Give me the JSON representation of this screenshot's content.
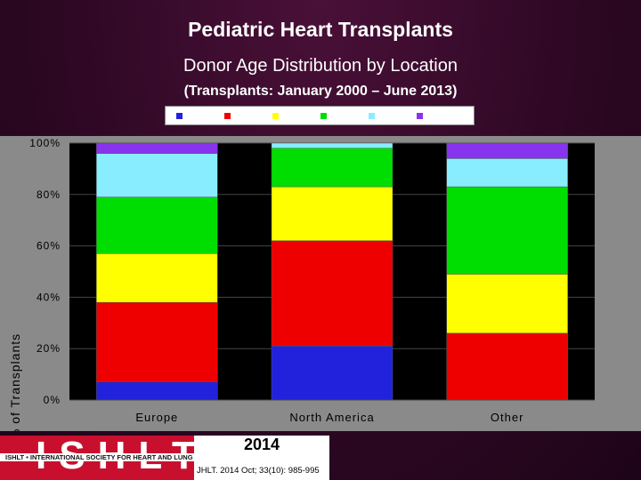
{
  "title": "Pediatric Heart Transplants",
  "subtitle": "Donor Age Distribution by Location",
  "subtitle2": "(Transplants: January 2000 – June 2013)",
  "colors": {
    "series": [
      "#2222dd",
      "#ee0000",
      "#ffff00",
      "#00dd00",
      "#88eeff",
      "#8833ee"
    ],
    "plot_bg": "#000000",
    "panel_bg": "#8a8a8a"
  },
  "chart_data": {
    "type": "bar",
    "stacked": true,
    "categories": [
      "Europe",
      "North America",
      "Other"
    ],
    "series": [
      {
        "values": [
          7,
          21,
          0
        ]
      },
      {
        "values": [
          31,
          41,
          26
        ]
      },
      {
        "values": [
          19,
          21,
          23
        ]
      },
      {
        "values": [
          22,
          15,
          34
        ]
      },
      {
        "values": [
          17,
          2,
          11
        ]
      },
      {
        "values": [
          4,
          0,
          6
        ]
      }
    ],
    "ylabel": "% of Transplants",
    "ylim": [
      0,
      100
    ],
    "yticks": [
      "0%",
      "20%",
      "40%",
      "60%",
      "80%",
      "100%"
    ],
    "grid": true,
    "legend": "top"
  },
  "footer": {
    "logo_text": "ISHLT",
    "logo_subtext": "ISHLT • INTERNATIONAL SOCIETY FOR HEART AND LUNG TRANSPLANTATION",
    "year": "2014",
    "citation": "JHLT. 2014 Oct; 33(10): 985-995"
  }
}
